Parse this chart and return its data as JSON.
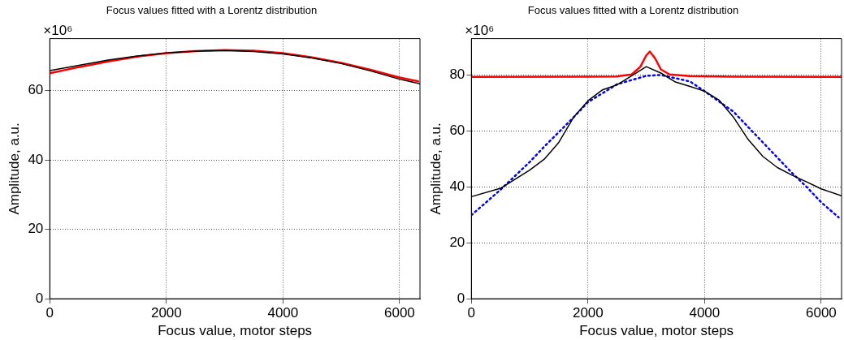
{
  "chart_data": [
    {
      "type": "line",
      "title": "Focus values fitted with a Lorentz distribution",
      "xlabel": "Focus value, motor steps",
      "ylabel": "Amplitude, a.u.",
      "annotations": [
        "×10⁶"
      ],
      "xlim": [
        0,
        6350
      ],
      "xticks": [
        0,
        2000,
        4000,
        6000
      ],
      "ylim": [
        0,
        75
      ],
      "yticks": [
        0,
        20,
        40,
        60
      ],
      "grid": true,
      "marker": "none",
      "series": [
        {
          "color": "#000000",
          "x": [
            0,
            500,
            1000,
            1500,
            2000,
            2500,
            3000,
            3500,
            4000,
            4500,
            5000,
            5500,
            6000,
            6350
          ],
          "values": [
            65.8,
            67.3,
            68.8,
            70.0,
            70.9,
            71.4,
            71.6,
            71.3,
            70.6,
            69.4,
            67.8,
            65.7,
            63.3,
            62.0
          ]
        },
        {
          "color": "#ff0000",
          "x": [
            0,
            500,
            1000,
            1500,
            2000,
            2500,
            3000,
            3500,
            4000,
            4500,
            5000,
            5500,
            6000,
            6320
          ],
          "values": [
            65.0,
            66.8,
            68.4,
            69.8,
            70.8,
            71.4,
            71.7,
            71.5,
            70.8,
            69.6,
            68.0,
            66.0,
            63.8,
            62.7
          ]
        }
      ]
    },
    {
      "type": "line",
      "title": "Focus values fitted with a Lorentz distribution",
      "xlabel": "Focus value, motor steps",
      "ylabel": "Amplitude, a.u.",
      "annotations": [
        "×10⁶"
      ],
      "xlim": [
        0,
        6350
      ],
      "xticks": [
        0,
        2000,
        4000,
        6000
      ],
      "ylim": [
        0,
        93
      ],
      "yticks": [
        0,
        20,
        40,
        60,
        80
      ],
      "grid": true,
      "marker": "none",
      "series": [
        {
          "color": "#000000",
          "line_style": "solid",
          "x": [
            0,
            500,
            1000,
            1250,
            1500,
            1750,
            2000,
            2250,
            2500,
            2750,
            3000,
            3250,
            3500,
            3750,
            4000,
            4250,
            4500,
            4750,
            5000,
            5250,
            5500,
            5750,
            6000,
            6350
          ],
          "values": [
            36.5,
            39.5,
            46.0,
            49.9,
            55.9,
            64.8,
            70.8,
            74.7,
            76.5,
            79.7,
            83.0,
            80.7,
            77.5,
            75.9,
            74.2,
            71.0,
            64.8,
            56.9,
            50.9,
            46.9,
            44.2,
            41.8,
            39.3,
            36.8
          ]
        },
        {
          "color": "#0000ff",
          "line_style": "dotted",
          "x": [
            0,
            500,
            1000,
            1250,
            1750,
            2000,
            2500,
            3000,
            3250,
            3750,
            4000,
            4500,
            5000,
            5500,
            5750,
            6000,
            6300
          ],
          "values": [
            29.9,
            39.0,
            48.9,
            54.4,
            64.8,
            70.3,
            76.7,
            79.7,
            80.0,
            77.7,
            74.2,
            66.8,
            55.9,
            45.0,
            40.0,
            34.5,
            29.1
          ]
        },
        {
          "color": "#ff0000",
          "line_style": "solid",
          "x": [
            0,
            2000,
            2500,
            2750,
            2900,
            3000,
            3060,
            3150,
            3250,
            3400,
            3750,
            4500,
            6350
          ],
          "values": [
            79.3,
            79.4,
            79.5,
            80.2,
            83.0,
            87.0,
            88.4,
            86.0,
            82.0,
            80.2,
            79.6,
            79.4,
            79.3
          ]
        }
      ]
    }
  ]
}
